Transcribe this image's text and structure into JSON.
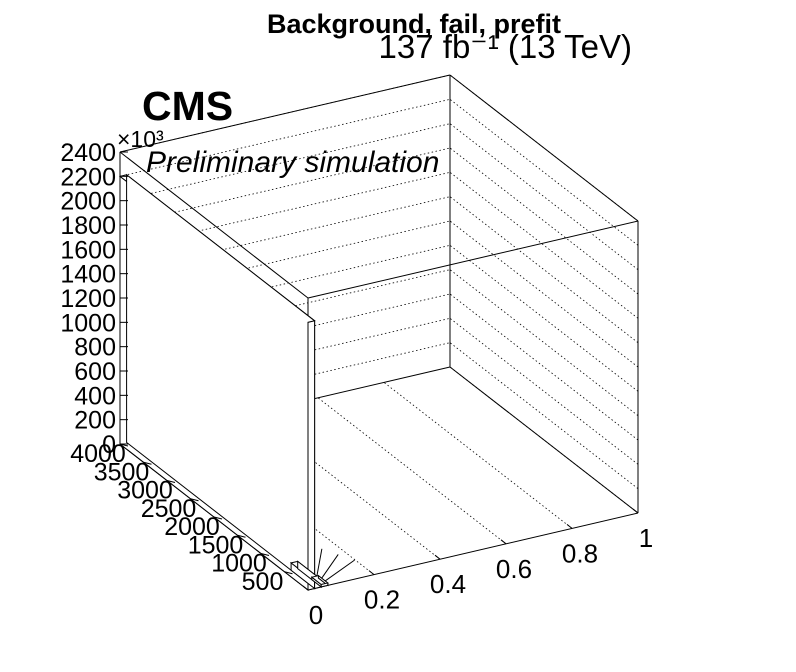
{
  "chart_data": {
    "type": "lego3d",
    "title": "Background, fail, prefit",
    "lumi_label": "137 fb⁻¹ (13 TeV)",
    "experiment": "CMS",
    "extra_text": "Preliminary simulation",
    "z_exponent": "×10³",
    "z_ticks": [
      "0",
      "200",
      "400",
      "600",
      "800",
      "1000",
      "1200",
      "1400",
      "1600",
      "1800",
      "2000",
      "2200",
      "2400"
    ],
    "y_ticks": [
      "500",
      "1000",
      "1500",
      "2000",
      "2500",
      "3000",
      "3500",
      "4000"
    ],
    "x_ticks": [
      "0",
      "0.2",
      "0.4",
      "0.6",
      "0.8",
      "1"
    ],
    "xlim": [
      0,
      1
    ],
    "ylim": [
      0,
      4000
    ],
    "zlim": [
      0,
      2400
    ],
    "bars": [
      {
        "x": [
          0.0,
          0.02
        ],
        "y": [
          0,
          4000
        ],
        "z": 2200
      },
      {
        "x": [
          0.02,
          0.04
        ],
        "y": [
          0,
          500
        ],
        "z": 60
      },
      {
        "x": [
          0.04,
          0.06
        ],
        "y": [
          0,
          200
        ],
        "z": 20
      }
    ],
    "grid": true
  }
}
